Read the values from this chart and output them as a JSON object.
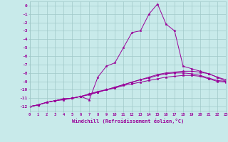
{
  "background_color": "#c8eaea",
  "grid_color": "#a0c8c8",
  "line_color": "#990099",
  "xlabel": "Windchill (Refroidissement éolien,°C)",
  "xlim": [
    0,
    23
  ],
  "ylim": [
    -12.5,
    0.5
  ],
  "xticks": [
    0,
    1,
    2,
    3,
    4,
    5,
    6,
    7,
    8,
    9,
    10,
    11,
    12,
    13,
    14,
    15,
    16,
    17,
    18,
    19,
    20,
    21,
    22,
    23
  ],
  "yticks": [
    0,
    -1,
    -2,
    -3,
    -4,
    -5,
    -6,
    -7,
    -8,
    -9,
    -10,
    -11,
    -12
  ],
  "series1": [
    [
      0,
      -12
    ],
    [
      1,
      -11.8
    ],
    [
      2,
      -11.5
    ],
    [
      3,
      -11.3
    ],
    [
      4,
      -11.1
    ],
    [
      5,
      -11.0
    ],
    [
      6,
      -10.8
    ],
    [
      7,
      -11.2
    ],
    [
      8,
      -8.5
    ],
    [
      9,
      -7.2
    ],
    [
      10,
      -6.8
    ],
    [
      11,
      -5.0
    ],
    [
      12,
      -3.2
    ],
    [
      13,
      -3.0
    ],
    [
      14,
      -1.0
    ],
    [
      15,
      0.2
    ],
    [
      16,
      -2.2
    ],
    [
      17,
      -3.0
    ],
    [
      18,
      -7.2
    ],
    [
      19,
      -7.5
    ],
    [
      20,
      -7.8
    ],
    [
      21,
      -8.1
    ],
    [
      22,
      -8.5
    ],
    [
      23,
      -8.8
    ]
  ],
  "series2": [
    [
      0,
      -12
    ],
    [
      1,
      -11.8
    ],
    [
      2,
      -11.5
    ],
    [
      3,
      -11.3
    ],
    [
      4,
      -11.1
    ],
    [
      5,
      -11.0
    ],
    [
      6,
      -10.8
    ],
    [
      7,
      -10.5
    ],
    [
      8,
      -10.2
    ],
    [
      9,
      -10.0
    ],
    [
      10,
      -9.7
    ],
    [
      11,
      -9.4
    ],
    [
      12,
      -9.1
    ],
    [
      13,
      -8.8
    ],
    [
      14,
      -8.5
    ],
    [
      15,
      -8.2
    ],
    [
      16,
      -8.0
    ],
    [
      17,
      -7.9
    ],
    [
      18,
      -7.8
    ],
    [
      19,
      -7.8
    ],
    [
      20,
      -7.9
    ],
    [
      21,
      -8.1
    ],
    [
      22,
      -8.5
    ],
    [
      23,
      -9.0
    ]
  ],
  "series3": [
    [
      0,
      -12
    ],
    [
      1,
      -11.8
    ],
    [
      2,
      -11.5
    ],
    [
      3,
      -11.3
    ],
    [
      4,
      -11.1
    ],
    [
      5,
      -11.0
    ],
    [
      6,
      -10.8
    ],
    [
      7,
      -10.6
    ],
    [
      8,
      -10.3
    ],
    [
      9,
      -10.0
    ],
    [
      10,
      -9.7
    ],
    [
      11,
      -9.4
    ],
    [
      12,
      -9.1
    ],
    [
      13,
      -8.8
    ],
    [
      14,
      -8.6
    ],
    [
      15,
      -8.3
    ],
    [
      16,
      -8.1
    ],
    [
      17,
      -8.0
    ],
    [
      18,
      -8.0
    ],
    [
      19,
      -8.1
    ],
    [
      20,
      -8.3
    ],
    [
      21,
      -8.6
    ],
    [
      22,
      -8.9
    ],
    [
      23,
      -9.0
    ]
  ],
  "series4": [
    [
      0,
      -12
    ],
    [
      1,
      -11.8
    ],
    [
      2,
      -11.5
    ],
    [
      3,
      -11.3
    ],
    [
      4,
      -11.2
    ],
    [
      5,
      -11.0
    ],
    [
      6,
      -10.8
    ],
    [
      7,
      -10.5
    ],
    [
      8,
      -10.3
    ],
    [
      9,
      -10.0
    ],
    [
      10,
      -9.8
    ],
    [
      11,
      -9.5
    ],
    [
      12,
      -9.3
    ],
    [
      13,
      -9.1
    ],
    [
      14,
      -8.9
    ],
    [
      15,
      -8.7
    ],
    [
      16,
      -8.5
    ],
    [
      17,
      -8.4
    ],
    [
      18,
      -8.3
    ],
    [
      19,
      -8.3
    ],
    [
      20,
      -8.4
    ],
    [
      21,
      -8.7
    ],
    [
      22,
      -9.0
    ],
    [
      23,
      -9.1
    ]
  ]
}
